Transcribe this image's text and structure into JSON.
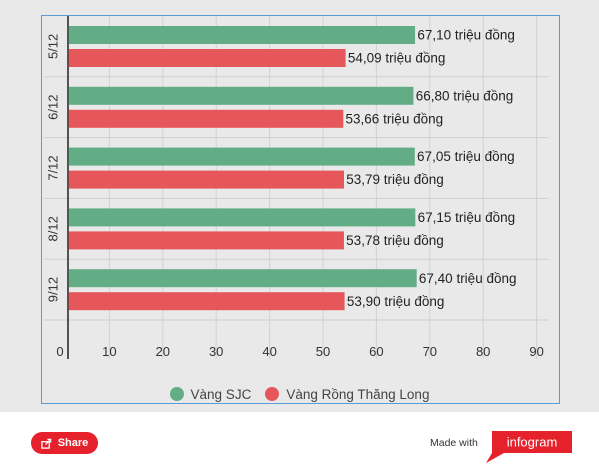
{
  "chart_data": {
    "type": "bar",
    "orientation": "horizontal",
    "categories": [
      "5/12",
      "6/12",
      "7/12",
      "8/12",
      "9/12"
    ],
    "series": [
      {
        "name": "Vàng SJC",
        "color": "#63ad86",
        "values": [
          67.1,
          66.8,
          67.05,
          67.15,
          67.4
        ],
        "labels": [
          "67,10 triệu đồng",
          "66,80 triệu đồng",
          "67,05 triệu đồng",
          "67,15 triệu đồng",
          "67,40 triệu đồng"
        ]
      },
      {
        "name": "Vàng Rồng Thăng Long",
        "color": "#e5575a",
        "values": [
          54.09,
          53.66,
          53.79,
          53.78,
          53.9
        ],
        "labels": [
          "54,09 triệu đồng",
          "53,66 triệu đồng",
          "53,79 triệu đồng",
          "53,78 triệu đồng",
          "53,90 triệu đồng"
        ]
      }
    ],
    "xticks": [
      "0",
      "10",
      "20",
      "30",
      "40",
      "50",
      "60",
      "70",
      "80",
      "90"
    ],
    "xlim": [
      0,
      90
    ],
    "grid": true,
    "legend_position": "bottom-center"
  },
  "footer": {
    "share_label": "Share",
    "made_with": "Made with",
    "brand": "infogram",
    "brand_color": "#e5222c"
  }
}
